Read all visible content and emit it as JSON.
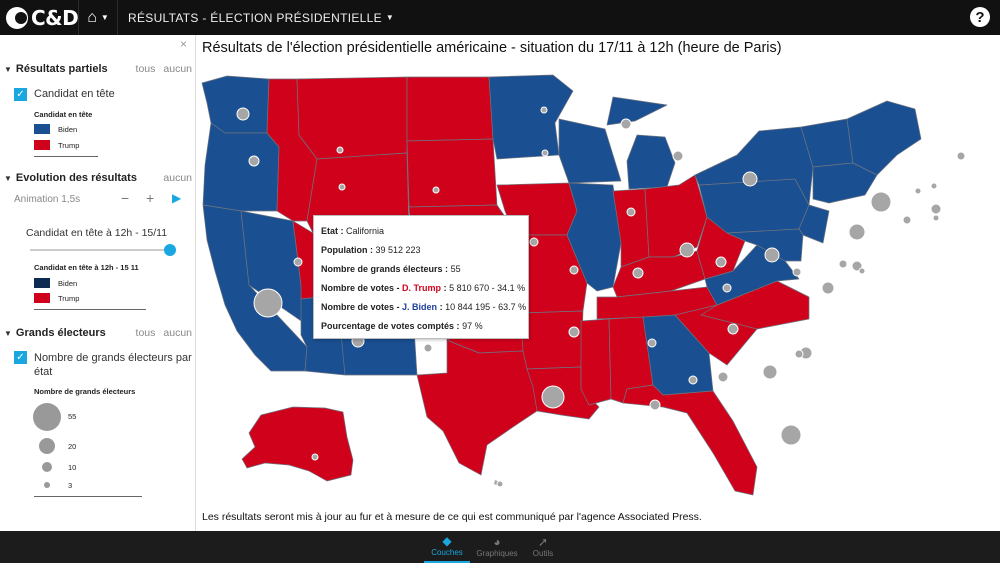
{
  "app": {
    "logo": "C&D",
    "menu_title": "RÉSULTATS - ÉLECTION PRÉSIDENTIELLE",
    "home_icon": "home-icon",
    "help_label": "?"
  },
  "sidebar": {
    "close_label": "×",
    "partial": {
      "title": "Résultats partiels",
      "link_all": "tous",
      "link_none": "aucun",
      "checkbox_label": "Candidat en tête",
      "legend_title": "Candidat en tête",
      "legend": [
        {
          "label": "Biden",
          "color": "#1a4f91"
        },
        {
          "label": "Trump",
          "color": "#d0021b"
        }
      ]
    },
    "evolution": {
      "title": "Evolution des résultats",
      "link_none": "aucun",
      "animation_label": "Animation 1,5s",
      "minus": "−",
      "plus": "+",
      "play": "▶",
      "slider_label": "Candidat en tête à 12h - 15/11",
      "slider_value": 1.0,
      "legend_title": "Candidat en tête à 12h - 15 11",
      "legend": [
        {
          "label": "Biden",
          "color": "#0d2a52"
        },
        {
          "label": "Trump",
          "color": "#d0021b"
        }
      ]
    },
    "electors": {
      "title": "Grands électeurs",
      "link_all": "tous",
      "link_none": "aucun",
      "checkbox_label": "Nombre de grands électeurs par état",
      "legend_title": "Nombre de grands électeurs",
      "legend": [
        "55",
        "20",
        "10",
        "3"
      ]
    }
  },
  "map": {
    "title": "Résultats de l'élection présidentielle américaine - situation du 17/11 à 12h (heure de Paris)",
    "note": "Les résultats seront mis à jour au fur et à mesure de ce qui est communiqué par l'agence Associated Press.",
    "colors": {
      "biden": "#1a4f91",
      "trump": "#d0021b",
      "circle": "#a6a6a6"
    }
  },
  "tooltip": {
    "state_label": "Etat :",
    "state_value": "California",
    "population_label": "Population :",
    "population_value": "39 512 223",
    "electors_label": "Nombre de grands électeurs :",
    "electors_value": "55",
    "votes_label": "Nombre de votes -",
    "trump_name": "D. Trump",
    "trump_sep": ":",
    "trump_value": "5 810 670 - 34.1 %",
    "biden_name": "J. Biden",
    "biden_sep": ":",
    "biden_value": "10 844 195 - 63.7 %",
    "counted_label": "Pourcentage de votes comptés :",
    "counted_value": "97 %"
  },
  "bottom_tabs": [
    {
      "label": "Couches",
      "icon": "layers-icon"
    },
    {
      "label": "Graphiques",
      "icon": "pie-chart-icon"
    },
    {
      "label": "Outils",
      "icon": "cursor-icon"
    }
  ]
}
